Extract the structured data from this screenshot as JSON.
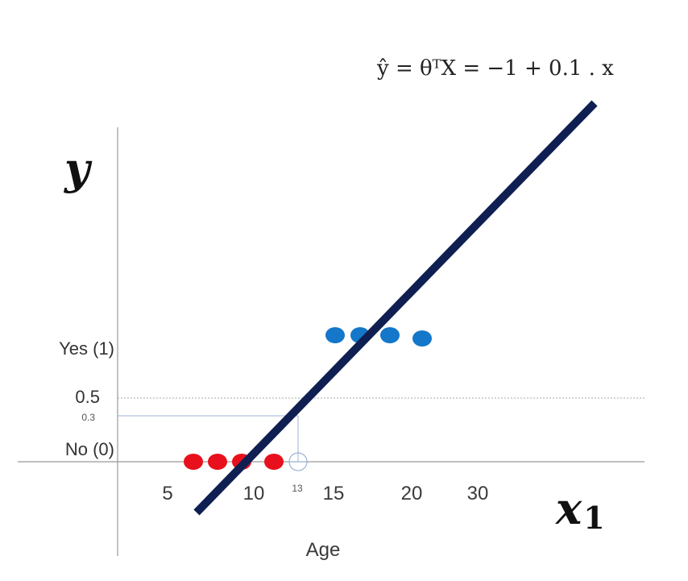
{
  "chart_data": {
    "type": "scatter",
    "equation": "ŷ = θᵀX = −1 + 0.1 . x",
    "xlabel": "Age",
    "x_axis_symbol": "x",
    "x_axis_symbol_sub": "1",
    "y_axis_symbol": "y",
    "x_ticks": [
      "5",
      "10",
      "15",
      "20",
      "30"
    ],
    "threshold_marker": "13",
    "y_labels": [
      {
        "text": "Yes (1)",
        "value": 1
      },
      {
        "text": "0.5",
        "value": 0.5
      },
      {
        "text": "0.3",
        "value": 0.3
      },
      {
        "text": "No (0)",
        "value": 0
      }
    ],
    "series": [
      {
        "color": "#e8101c",
        "points": [
          {
            "x": 6,
            "y": 0
          },
          {
            "x": 8,
            "y": 0
          },
          {
            "x": 9.5,
            "y": 0
          },
          {
            "x": 12,
            "y": 0
          }
        ]
      },
      {
        "color": "#1477c9",
        "points": [
          {
            "x": 15,
            "y": 1
          },
          {
            "x": 16.5,
            "y": 1
          },
          {
            "x": 18.5,
            "y": 1
          },
          {
            "x": 21,
            "y": 1
          }
        ]
      }
    ],
    "regression_line": {
      "color": "#0f1f52",
      "x_start": 7,
      "x_end": 22
    },
    "threshold_line": {
      "y": 0.5,
      "style": "dotted"
    },
    "reference_line": {
      "x": 13,
      "y": 0.3
    },
    "grid": false
  }
}
